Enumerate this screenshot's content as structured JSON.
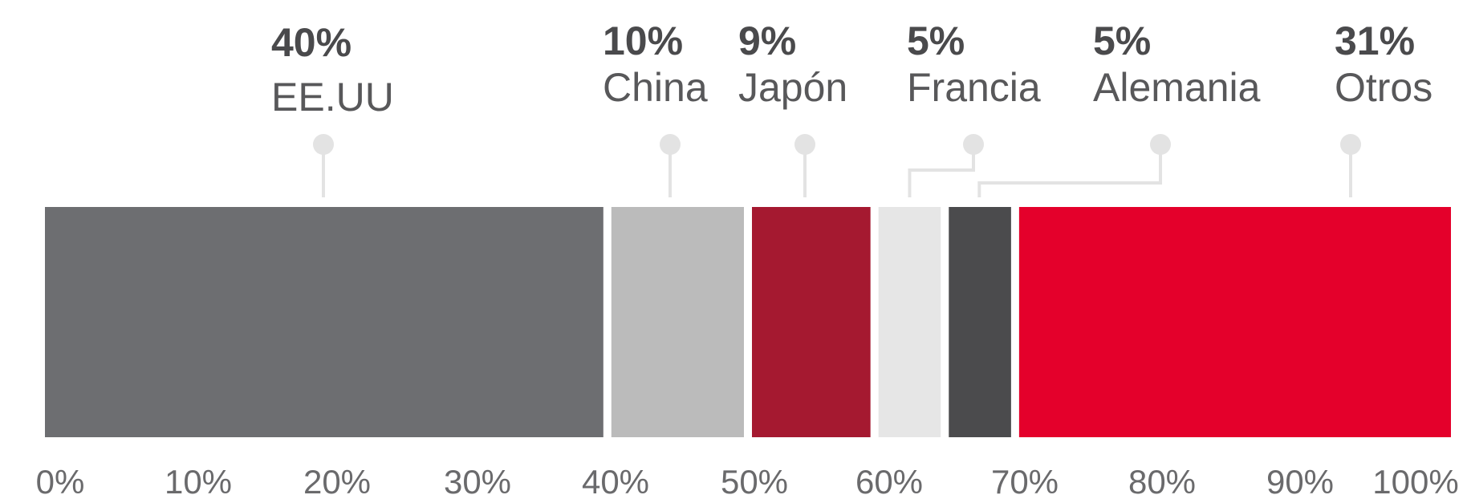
{
  "chart_data": {
    "type": "bar",
    "orientation": "horizontal-stacked",
    "categories": [
      "EE.UU",
      "China",
      "Japón",
      "Francia",
      "Alemania",
      "Otros"
    ],
    "values": [
      40,
      10,
      9,
      5,
      5,
      31
    ],
    "value_labels": [
      "40%",
      "10%",
      "9%",
      "5%",
      "5%",
      "31%"
    ],
    "colors": [
      "#6d6e71",
      "#bbbbbb",
      "#a51930",
      "#e6e6e6",
      "#4b4b4d",
      "#e4002b"
    ],
    "xlim": [
      0,
      100
    ],
    "x_ticks": [
      "0%",
      "10%",
      "20%",
      "30%",
      "40%",
      "50%",
      "60%",
      "70%",
      "80%",
      "90%",
      "100%"
    ],
    "grid": false,
    "legend": "none"
  }
}
